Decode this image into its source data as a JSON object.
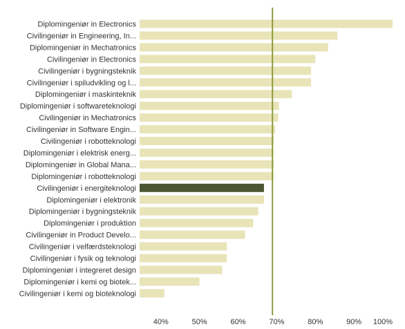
{
  "chart_data": {
    "type": "bar",
    "orientation": "horizontal",
    "categories": [
      "Diplomingeniør in Electronics",
      "Civilingeniør in Engineering, In...",
      "Diplomingeniør in Mechatronics",
      "Civilingeniør in Electronics",
      "Civilingeniør i bygningsteknik",
      "Civilingeniør i spiludvikling og l...",
      "Diplomingeniør i maskinteknik",
      "Diplomingeniør i softwareteknologi",
      "Civilingeniør in Mechatronics",
      "Civilingeniør in Software Engin...",
      "Civilingeniør i robotteknologi",
      "Diplomingeniør i elektrisk energ...",
      "Diplomingeniør in Global Mana...",
      "Diplomingeniør i robotteknologi",
      "Civilingeniør i energiteknologi",
      "Diplomingeniør i elektronik",
      "Diplomingeniør i bygningsteknik",
      "Diplomingeniør i produktion",
      "Civilingeniør in Product Develo...",
      "Civilingeniør i velfærdsteknologi",
      "Civilingeniør i fysik og teknologi",
      "Diplomingeniør i integreret design",
      "Diplomingeniør i kemi og biotek...",
      "Civilingeniør i kemi og bioteknologi"
    ],
    "values": [
      100,
      85.7,
      83.3,
      80,
      78.9,
      78.9,
      73.9,
      70.6,
      70.4,
      69.6,
      69.2,
      69.2,
      69.2,
      69.2,
      66.7,
      66.7,
      65.2,
      63.9,
      61.8,
      57.1,
      57.1,
      55.9,
      50,
      40.9
    ],
    "highlight_index": 14,
    "reference_value": 68.9,
    "xlim": [
      34.5,
      100
    ],
    "xticks": [
      "40%",
      "50%",
      "60%",
      "70%",
      "80%",
      "90%",
      "100%"
    ],
    "xtick_values": [
      40,
      50,
      60,
      70,
      80,
      90,
      100
    ],
    "title": "",
    "xlabel": "",
    "ylabel": "",
    "grid": false,
    "legend": "none",
    "colors": {
      "bar": "#e8e4b8",
      "highlight": "#4b5532",
      "reference_line": "#8c9a3a",
      "text": "#333333"
    }
  }
}
